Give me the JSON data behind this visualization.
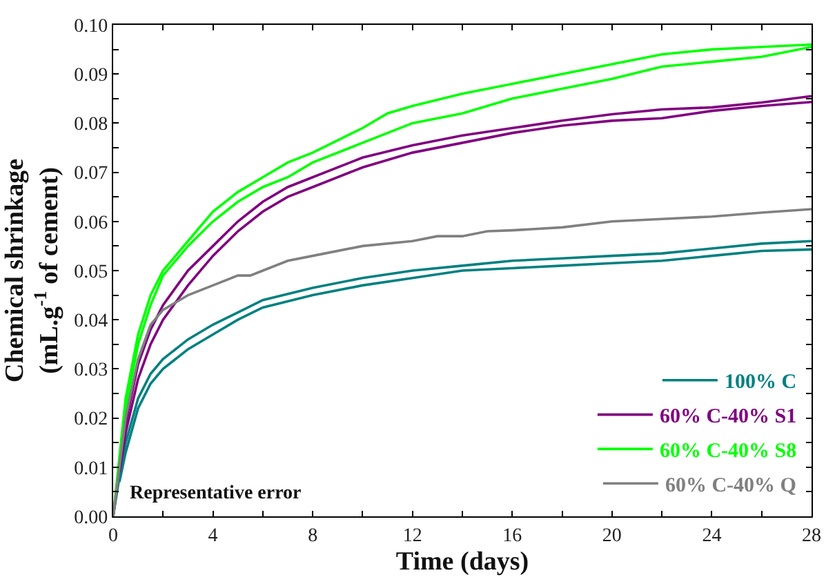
{
  "chart_data": {
    "type": "line",
    "xlabel": "Time (days)",
    "ylabel": "Chemical shrinkage\n(mL.g$^{-1}$ of cement)",
    "xlim": [
      0,
      28
    ],
    "ylim": [
      0,
      0.1
    ],
    "xticks": [
      0,
      {
        "value": 2,
        "label": null
      },
      4,
      {
        "value": 6,
        "label": null
      },
      8,
      {
        "value": 10,
        "label": null
      },
      12,
      {
        "value": 14,
        "label": null
      },
      16,
      {
        "value": 18,
        "label": null
      },
      20,
      {
        "value": 22,
        "label": null
      },
      24,
      {
        "value": 26,
        "label": null
      },
      28
    ],
    "yticks": [
      {
        "value": 0,
        "label": "0.00"
      },
      {
        "value": 0.005,
        "label": null
      },
      {
        "value": 0.01,
        "label": "0.01"
      },
      {
        "value": 0.015,
        "label": null
      },
      {
        "value": 0.02,
        "label": "0.02"
      },
      {
        "value": 0.025,
        "label": null
      },
      {
        "value": 0.03,
        "label": "0.03"
      },
      {
        "value": 0.035,
        "label": null
      },
      {
        "value": 0.04,
        "label": "0.04"
      },
      {
        "value": 0.045,
        "label": null
      },
      {
        "value": 0.05,
        "label": "0.05"
      },
      {
        "value": 0.055,
        "label": null
      },
      {
        "value": 0.06,
        "label": "0.06"
      },
      {
        "value": 0.065,
        "label": null
      },
      {
        "value": 0.07,
        "label": "0.07"
      },
      {
        "value": 0.075,
        "label": null
      },
      {
        "value": 0.08,
        "label": "0.08"
      },
      {
        "value": 0.085,
        "label": null
      },
      {
        "value": 0.09,
        "label": "0.09"
      },
      {
        "value": 0.095,
        "label": null
      },
      {
        "value": 0.1,
        "label": "0.10"
      }
    ],
    "legend": "bottom right",
    "marker": "none",
    "line_style": "solid",
    "annotations": [
      "Representative error"
    ],
    "series": [
      {
        "name": "100% C",
        "color": "#008080",
        "x": [
          0,
          0.25,
          0.5,
          1,
          1.5,
          2,
          3,
          4,
          5,
          6,
          8,
          10,
          12,
          14,
          16,
          18,
          20,
          22,
          24,
          26,
          28
        ],
        "values": [
          0,
          0.008,
          0.015,
          0.024,
          0.029,
          0.032,
          0.036,
          0.039,
          0.0415,
          0.044,
          0.0465,
          0.0485,
          0.05,
          0.051,
          0.052,
          0.0525,
          0.053,
          0.0535,
          0.0545,
          0.0555,
          0.056
        ]
      },
      {
        "color": "#008080",
        "x": [
          0.25,
          0.5,
          1,
          1.5,
          2,
          3,
          4,
          5,
          6,
          8,
          10,
          12,
          14,
          16,
          18,
          20,
          22,
          24,
          26,
          28
        ],
        "values": [
          0.007,
          0.013,
          0.022,
          0.027,
          0.03,
          0.034,
          0.037,
          0.04,
          0.0425,
          0.045,
          0.047,
          0.0485,
          0.05,
          0.0505,
          0.051,
          0.0515,
          0.052,
          0.053,
          0.054,
          0.0543
        ]
      },
      {
        "name": "60% C-40% S1",
        "color": "#800080",
        "x": [
          0,
          0.25,
          0.5,
          1,
          1.5,
          2,
          3,
          4,
          5,
          6,
          7,
          8,
          10,
          12,
          14,
          16,
          18,
          20,
          22,
          24,
          26,
          28
        ],
        "values": [
          0,
          0.01,
          0.019,
          0.031,
          0.038,
          0.043,
          0.05,
          0.055,
          0.06,
          0.064,
          0.067,
          0.069,
          0.073,
          0.0755,
          0.0775,
          0.079,
          0.0805,
          0.0818,
          0.0828,
          0.0832,
          0.0842,
          0.0855
        ]
      },
      {
        "color": "#800080",
        "x": [
          0.25,
          0.5,
          1,
          1.5,
          2,
          3,
          4,
          5,
          6,
          7,
          8,
          10,
          12,
          14,
          16,
          18,
          20,
          22,
          24,
          26,
          28
        ],
        "values": [
          0.009,
          0.017,
          0.028,
          0.035,
          0.04,
          0.047,
          0.053,
          0.058,
          0.062,
          0.065,
          0.067,
          0.071,
          0.074,
          0.076,
          0.078,
          0.0795,
          0.0805,
          0.081,
          0.0825,
          0.0835,
          0.0843
        ]
      },
      {
        "name": "60% C-40% S8",
        "color": "#00ff00",
        "x": [
          0,
          0.25,
          0.5,
          1,
          1.5,
          2,
          3,
          4,
          5,
          6,
          7,
          8,
          10,
          11,
          12,
          14,
          16,
          18,
          20,
          22,
          24,
          26,
          28
        ],
        "values": [
          0,
          0.012,
          0.024,
          0.037,
          0.045,
          0.05,
          0.056,
          0.062,
          0.066,
          0.069,
          0.072,
          0.074,
          0.079,
          0.082,
          0.0835,
          0.086,
          0.088,
          0.09,
          0.092,
          0.094,
          0.095,
          0.0955,
          0.096
        ]
      },
      {
        "color": "#00ff00",
        "x": [
          0.25,
          0.5,
          1,
          1.5,
          2,
          3,
          4,
          5,
          6,
          7,
          8,
          10,
          11,
          12,
          14,
          16,
          18,
          20,
          22,
          24,
          26,
          28
        ],
        "values": [
          0.011,
          0.022,
          0.035,
          0.043,
          0.049,
          0.055,
          0.06,
          0.064,
          0.067,
          0.069,
          0.072,
          0.076,
          0.078,
          0.08,
          0.082,
          0.085,
          0.087,
          0.089,
          0.0915,
          0.0925,
          0.0935,
          0.0955
        ]
      },
      {
        "name": "60% C-40% Q",
        "color": "#808080",
        "x": [
          0,
          0.25,
          0.5,
          1,
          1.5,
          2,
          3,
          4,
          5,
          5.5,
          6,
          7,
          8,
          10,
          12,
          13,
          14,
          15,
          16,
          18,
          20,
          22,
          24,
          26,
          28
        ],
        "values": [
          0,
          0.01,
          0.02,
          0.032,
          0.039,
          0.042,
          0.045,
          0.047,
          0.049,
          0.049,
          0.05,
          0.052,
          0.053,
          0.055,
          0.056,
          0.057,
          0.057,
          0.058,
          0.0582,
          0.0588,
          0.06,
          0.0605,
          0.061,
          0.0618,
          0.0625
        ]
      }
    ]
  }
}
